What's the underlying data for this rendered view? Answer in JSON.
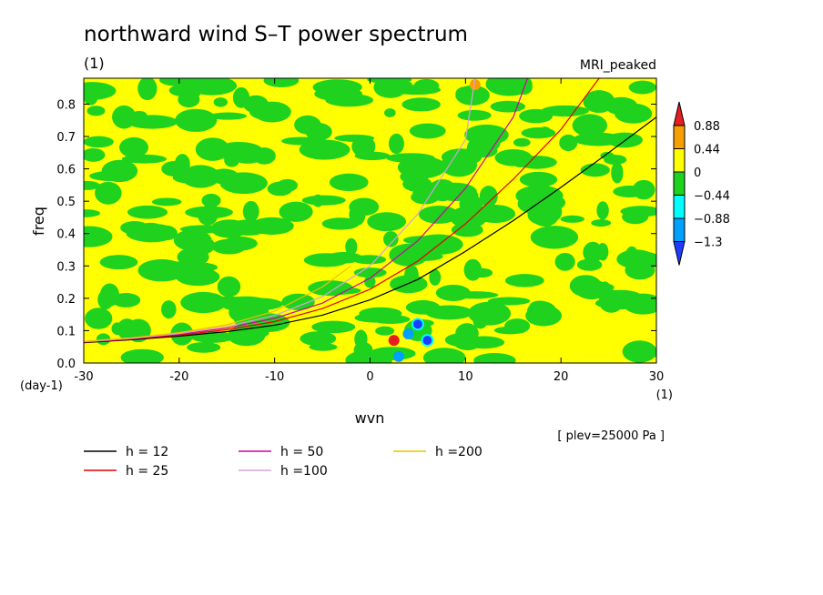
{
  "chart_data": {
    "type": "heatmap",
    "title": "northward wind S–T power spectrum",
    "title_units": "(1)",
    "model_label": "MRI_peaked",
    "xlabel": "wvn",
    "ylabel": "freq",
    "x_units": "(1)",
    "y_units": "(day-1)",
    "xlim": [
      -30,
      30
    ],
    "ylim": [
      0,
      0.88
    ],
    "x_ticks": [
      "-30",
      "-20",
      "-10",
      "0",
      "10",
      "20",
      "30"
    ],
    "y_ticks": [
      "0.0",
      "0.1",
      "0.2",
      "0.3",
      "0.4",
      "0.5",
      "0.6",
      "0.7",
      "0.8"
    ],
    "colorbar": {
      "labels": [
        "0.88",
        "0.44",
        "0",
        "−0.44",
        "−0.88",
        "−1.3"
      ],
      "levels": [
        0.88,
        0.44,
        0,
        -0.44,
        -0.88,
        -1.3
      ],
      "colors": {
        "above_0.88": "#e61e1e",
        "0.44_to_0.88": "#f5a000",
        "0_to_0.44": "#ffff00",
        "-0.44_to_0": "#1ed21e",
        "-0.88_to_-0.44": "#00ffff",
        "-1.3_to_-0.88": "#00a0ff",
        "below_-1.3": "#1e3cff"
      }
    },
    "footnote": "[ plev=25000 Pa ]",
    "series": [
      {
        "name": "h = 12",
        "color": "#000000",
        "x": [
          -30,
          -25,
          -20,
          -15,
          -10,
          -5,
          0,
          5,
          10,
          15,
          20,
          25,
          30
        ],
        "y": [
          0.063,
          0.072,
          0.083,
          0.097,
          0.117,
          0.148,
          0.195,
          0.258,
          0.345,
          0.44,
          0.543,
          0.65,
          0.76
        ]
      },
      {
        "name": "h = 25",
        "color": "#e60000",
        "x": [
          -30,
          -25,
          -20,
          -15,
          -10,
          -5,
          0,
          5,
          10,
          15,
          20,
          24
        ],
        "y": [
          0.064,
          0.074,
          0.086,
          0.103,
          0.128,
          0.168,
          0.228,
          0.315,
          0.43,
          0.568,
          0.722,
          0.88
        ]
      },
      {
        "name": "h = 50",
        "color": "#d000a0",
        "x": [
          -30,
          -25,
          -20,
          -15,
          -10,
          -5,
          0,
          5,
          10,
          15,
          16.5
        ],
        "y": [
          0.065,
          0.075,
          0.089,
          0.108,
          0.138,
          0.185,
          0.262,
          0.378,
          0.54,
          0.76,
          0.88
        ]
      },
      {
        "name": "h =100",
        "color": "#d8a0e0",
        "x": [
          -30,
          -25,
          -20,
          -15,
          -10,
          -5,
          0,
          5,
          10,
          11
        ],
        "y": [
          0.066,
          0.076,
          0.091,
          0.113,
          0.147,
          0.205,
          0.3,
          0.46,
          0.69,
          0.88
        ]
      },
      {
        "name": "h =200",
        "color": "#f0c000",
        "x": [
          -30,
          -25,
          -20,
          -15,
          -10,
          -5,
          -2
        ],
        "y": [
          0.067,
          0.078,
          0.094,
          0.118,
          0.16,
          0.235,
          0.3
        ]
      }
    ],
    "legend": [
      {
        "label": "h = 12",
        "color": "#000000"
      },
      {
        "label": "h = 25",
        "color": "#e60000"
      },
      {
        "label": "h = 50",
        "color": "#d000a0"
      },
      {
        "label": "h =100",
        "color": "#d8a0e0"
      },
      {
        "label": "h =200",
        "color": "#f0c000"
      }
    ],
    "anomalies": [
      {
        "x": 5,
        "y": 0.12,
        "level": "below_-1.3"
      },
      {
        "x": 6,
        "y": 0.07,
        "level": "below_-1.3"
      },
      {
        "x": 3,
        "y": 0.02,
        "level": "-1.3_to_-0.88"
      },
      {
        "x": 4,
        "y": 0.09,
        "level": "-1.3_to_-0.88"
      },
      {
        "x": 2.5,
        "y": 0.07,
        "level": "above_0.88"
      },
      {
        "x": 11,
        "y": 0.86,
        "level": "0.44_to_0.88"
      }
    ]
  }
}
